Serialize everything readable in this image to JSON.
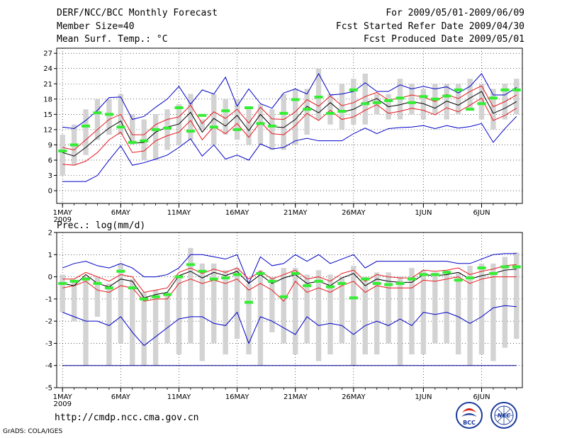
{
  "header": {
    "title": "DERF/NCC/BCC Monthly Forecast",
    "member_size": "Member Size=40",
    "variable": "Mean Surf. Temp.: °C",
    "period": "For 2009/05/01-2009/06/09",
    "refer_date": "Fcst Started Refer Date 2009/04/30",
    "produced_date": "Fcst Produced Date 2009/05/01"
  },
  "footer": {
    "url": "http://cmdp.ncc.cma.gov.cn",
    "grads": "GrADS: COLA/IGES",
    "logo_bcc": "BCC",
    "logo_ncc": "NCC"
  },
  "colors": {
    "box": "#d3d3d3",
    "ensemble_mean": "#000000",
    "percentile_band": "#e8191e",
    "min_max": "#0000c8",
    "observed": "#33ee33",
    "grid": "#000000"
  },
  "chart_data": [
    {
      "type": "box-ensemble",
      "title": "Mean Surf. Temp.: °C",
      "ylabel": "°C",
      "ylim": [
        -2.5,
        28
      ],
      "yticks": [
        "0",
        "3",
        "6",
        "9",
        "12",
        "15",
        "18",
        "21",
        "24",
        "27"
      ],
      "ytick_values": [
        0,
        3,
        6,
        9,
        12,
        15,
        18,
        21,
        24,
        27
      ],
      "xlim": [
        0.5,
        40.5
      ],
      "xticks": [
        {
          "day": 1,
          "label": "1MAY",
          "sub": "2009"
        },
        {
          "day": 6,
          "label": "6MAY"
        },
        {
          "day": 11,
          "label": "11MAY"
        },
        {
          "day": 16,
          "label": "16MAY"
        },
        {
          "day": 21,
          "label": "21MAY"
        },
        {
          "day": 26,
          "label": "26MAY"
        },
        {
          "day": 32,
          "label": "1JUN"
        },
        {
          "day": 37,
          "label": "6JUN"
        }
      ],
      "box_low": [
        3,
        5,
        7,
        10,
        11,
        11,
        9,
        6,
        6,
        8,
        9,
        10,
        12,
        9,
        11,
        10,
        9,
        9,
        8,
        8,
        9,
        11,
        14,
        13,
        12,
        13,
        13,
        15,
        14,
        14,
        15,
        14,
        15,
        14,
        15,
        16,
        14,
        12,
        14,
        15
      ],
      "box_high": [
        11,
        13,
        16,
        18,
        18,
        19,
        15,
        14,
        15,
        16,
        17,
        19,
        14,
        19,
        18,
        18,
        16,
        17,
        16,
        19,
        20,
        20,
        24,
        19,
        21,
        22,
        23,
        19,
        19,
        22,
        21,
        20,
        21,
        21,
        21,
        22,
        21,
        20,
        21,
        22
      ],
      "mean": [
        7.5,
        6.8,
        8.5,
        10.5,
        12.3,
        13.7,
        9.3,
        9.5,
        11.5,
        12.5,
        13.1,
        15.4,
        11.5,
        14.2,
        12.7,
        14.8,
        11.8,
        15,
        12.6,
        12.4,
        14,
        16.6,
        15.3,
        17.3,
        15.4,
        16,
        17.2,
        18.1,
        16.5,
        16.9,
        17.5,
        17.1,
        16.2,
        17.6,
        16.8,
        18.2,
        19.5,
        15.2,
        16.2,
        17.5
      ],
      "upper": [
        8.5,
        8,
        10,
        12,
        14,
        15,
        11,
        11,
        13,
        14,
        14.5,
        16.8,
        13.2,
        15.5,
        14.2,
        16,
        13.3,
        16.4,
        14.1,
        14,
        15.5,
        17.9,
        16.6,
        18.6,
        16.7,
        17.3,
        18.5,
        19.3,
        17.8,
        18.2,
        18.8,
        18.4,
        17.5,
        18.9,
        18.1,
        19.5,
        20.6,
        16.5,
        17.5,
        18.8
      ],
      "lower": [
        5.2,
        5,
        5.8,
        7.5,
        10,
        11.5,
        7.5,
        7.8,
        9.8,
        10.8,
        11.5,
        13.8,
        10,
        12.6,
        11.2,
        13.2,
        10.5,
        13.5,
        11.2,
        11,
        12.8,
        15.2,
        13.8,
        15.8,
        14,
        14.5,
        15.8,
        16.9,
        15.2,
        15.6,
        16.2,
        15.8,
        14.9,
        16.3,
        15.5,
        16.8,
        18.2,
        13.8,
        14.8,
        16.2
      ],
      "max": [
        12.5,
        12.2,
        13.8,
        15.8,
        18.3,
        18.4,
        14,
        14.6,
        16.4,
        18,
        20.5,
        17,
        19.8,
        19,
        22.3,
        16.6,
        20,
        17.1,
        16.2,
        19.2,
        20,
        19,
        23,
        18.8,
        19,
        19.5,
        21.2,
        19.5,
        19.5,
        20.8,
        20,
        20.5,
        20,
        20.4,
        19.2,
        20.5,
        23,
        18.8,
        18.8,
        20.3
      ],
      "min": [
        1.8,
        1.8,
        1.8,
        3,
        6,
        8.8,
        5,
        5.5,
        6.2,
        7,
        8.5,
        10.2,
        6.8,
        9,
        6.2,
        7,
        6,
        9.2,
        8.2,
        8.5,
        9.8,
        10.3,
        9.8,
        9.8,
        9.8,
        11.2,
        12.3,
        11.2,
        12.2,
        12.4,
        12.5,
        12.8,
        12.2,
        12.8,
        12.3,
        12.6,
        13.2,
        9.5,
        12.2,
        14.6
      ],
      "observed": [
        7.8,
        9.0,
        12.7,
        15.3,
        15.0,
        12.5,
        9.5,
        9.8,
        12.0,
        12.3,
        16.3,
        11.7,
        14.8,
        12.5,
        15.7,
        12.0,
        16.3,
        13.2,
        12.7,
        15.2,
        17.9,
        16.0,
        18.4,
        15.2,
        15.6,
        19.8,
        17.1,
        17.3,
        17.7,
        18.2,
        17.3,
        18.5,
        18.0,
        18.6,
        19.8,
        16.0,
        17.1,
        18.2,
        19.8,
        19.8
      ],
      "legend": []
    },
    {
      "type": "box-ensemble",
      "title": "Prec.: log(mm/d)",
      "ylabel": "log(mm/d)",
      "ylim": [
        -5,
        2
      ],
      "yticks": [
        "-5",
        "-4",
        "-3",
        "-2",
        "-1",
        "0",
        "1",
        "2"
      ],
      "ytick_values": [
        -5,
        -4,
        -3,
        -2,
        -1,
        0,
        1,
        2
      ],
      "xlim": [
        0.5,
        40.5
      ],
      "xticks": [
        {
          "day": 1,
          "label": "1MAY",
          "sub": "2009"
        },
        {
          "day": 6,
          "label": "6MAY"
        },
        {
          "day": 11,
          "label": "11MAY"
        },
        {
          "day": 16,
          "label": "16MAY"
        },
        {
          "day": 21,
          "label": "21MAY"
        },
        {
          "day": 26,
          "label": "26MAY"
        },
        {
          "day": 32,
          "label": "1JUN"
        },
        {
          "day": 37,
          "label": "6JUN"
        }
      ],
      "baseline": -4,
      "box_low": [
        -1.6,
        -2,
        -4,
        -1.8,
        -4,
        -3,
        -4,
        -4,
        -4,
        -3,
        -3.5,
        -3,
        -3.8,
        -3,
        -3.5,
        -2.8,
        -3.5,
        -4,
        -2.5,
        -3,
        -3.5,
        -3,
        -3.8,
        -3.5,
        -3,
        -4,
        -3.5,
        -3.5,
        -3,
        -4,
        -3.5,
        -3.5,
        -3,
        -3,
        -3.5,
        -4,
        -3.5,
        -3.8,
        -3.2,
        -2.8
      ],
      "box_high": [
        0.1,
        -0.2,
        0,
        0,
        -0.3,
        0.6,
        -0.1,
        -0.7,
        -0.6,
        -0.7,
        0.1,
        1.3,
        0.6,
        0.6,
        0.3,
        0.4,
        -0.3,
        0.3,
        0,
        0.4,
        0.4,
        0.1,
        0.3,
        0.1,
        0,
        0.5,
        0,
        0.2,
        0.2,
        0,
        0.4,
        0.3,
        0.2,
        0.3,
        0.2,
        0.5,
        0.6,
        0.6,
        0.9,
        1.1
      ],
      "mean": [
        -0.3,
        -0.4,
        0.1,
        -0.3,
        -0.45,
        -0.1,
        -0.2,
        -0.95,
        -0.8,
        -0.7,
        0.05,
        0.25,
        -0.05,
        0.2,
        0.05,
        0.25,
        -0.3,
        0.1,
        -0.3,
        -0.05,
        0.1,
        -0.3,
        -0.2,
        -0.4,
        -0.05,
        0.15,
        -0.4,
        -0.1,
        -0.2,
        -0.25,
        -0.25,
        0.1,
        0.05,
        0.1,
        0.2,
        -0.1,
        0.05,
        0.15,
        0.3,
        0.35
      ],
      "upper": [
        -0.1,
        -0.1,
        0.2,
        0,
        -0.2,
        0.1,
        0,
        -0.7,
        -0.6,
        -0.5,
        0.2,
        0.4,
        0.15,
        0.35,
        0.2,
        0.4,
        -0.1,
        0.25,
        -0.1,
        0.1,
        0.3,
        -0.1,
        0,
        -0.2,
        0.15,
        0.3,
        -0.2,
        0.1,
        0,
        -0.05,
        -0.05,
        0.3,
        0.25,
        0.3,
        0.4,
        0.1,
        0.25,
        0.35,
        0.5,
        0.55
      ],
      "lower": [
        -0.5,
        -0.4,
        -0.2,
        -0.6,
        -0.7,
        -0.4,
        -0.5,
        -1.1,
        -1,
        -1,
        -0.3,
        -0.1,
        -0.3,
        -0.15,
        -0.3,
        -0.1,
        -0.6,
        -0.3,
        -0.6,
        -1.1,
        -0.2,
        -0.7,
        -0.5,
        -0.7,
        -0.4,
        -0.2,
        -0.7,
        -0.4,
        -0.5,
        -0.5,
        -0.5,
        -0.15,
        -0.2,
        -0.1,
        0,
        -0.3,
        -0.1,
        0,
        0,
        0
      ],
      "max": [
        0.4,
        0.6,
        0.7,
        0.5,
        0.4,
        0.6,
        0.4,
        0,
        0,
        0.1,
        0.4,
        1.0,
        1.0,
        0.9,
        0.8,
        1.0,
        -0.3,
        0.9,
        0.5,
        0.6,
        1.0,
        0.7,
        1.0,
        0.6,
        0.8,
        1.0,
        0.4,
        0.7,
        0.7,
        0.7,
        0.7,
        0.7,
        0.7,
        0.7,
        0.6,
        0.6,
        0.8,
        1.0,
        1.05,
        1.05
      ],
      "min": [
        -1.6,
        -1.8,
        -2,
        -2,
        -2.2,
        -1.8,
        -2.5,
        -3.1,
        -2.7,
        -2.3,
        -1.9,
        -1.8,
        -1.8,
        -2.1,
        -2.2,
        -1.6,
        -3,
        -1.8,
        -2,
        -2.3,
        -2.6,
        -1.8,
        -2.2,
        -2.1,
        -2.2,
        -2.6,
        -2.2,
        -2,
        -2.2,
        -1.9,
        -2.2,
        -1.6,
        -1.7,
        -1.6,
        -1.8,
        -2.1,
        -1.8,
        -1.4,
        -1.3,
        -1.35
      ],
      "observed": [
        -0.3,
        -0.2,
        -0.1,
        -0.3,
        -0.5,
        0.25,
        -0.5,
        -1.0,
        -0.9,
        -0.8,
        0,
        0.55,
        0.25,
        -0.1,
        -0.05,
        0.1,
        -1.15,
        0.15,
        -0.2,
        -0.9,
        0.15,
        -0.4,
        -0.2,
        -0.45,
        -0.3,
        -0.95,
        -0.1,
        -0.3,
        -0.35,
        -0.3,
        -0.1,
        0.1,
        0.1,
        0.2,
        -0.15,
        -0.05,
        0.4,
        0.15,
        0.45,
        0.45
      ],
      "legend": []
    }
  ]
}
